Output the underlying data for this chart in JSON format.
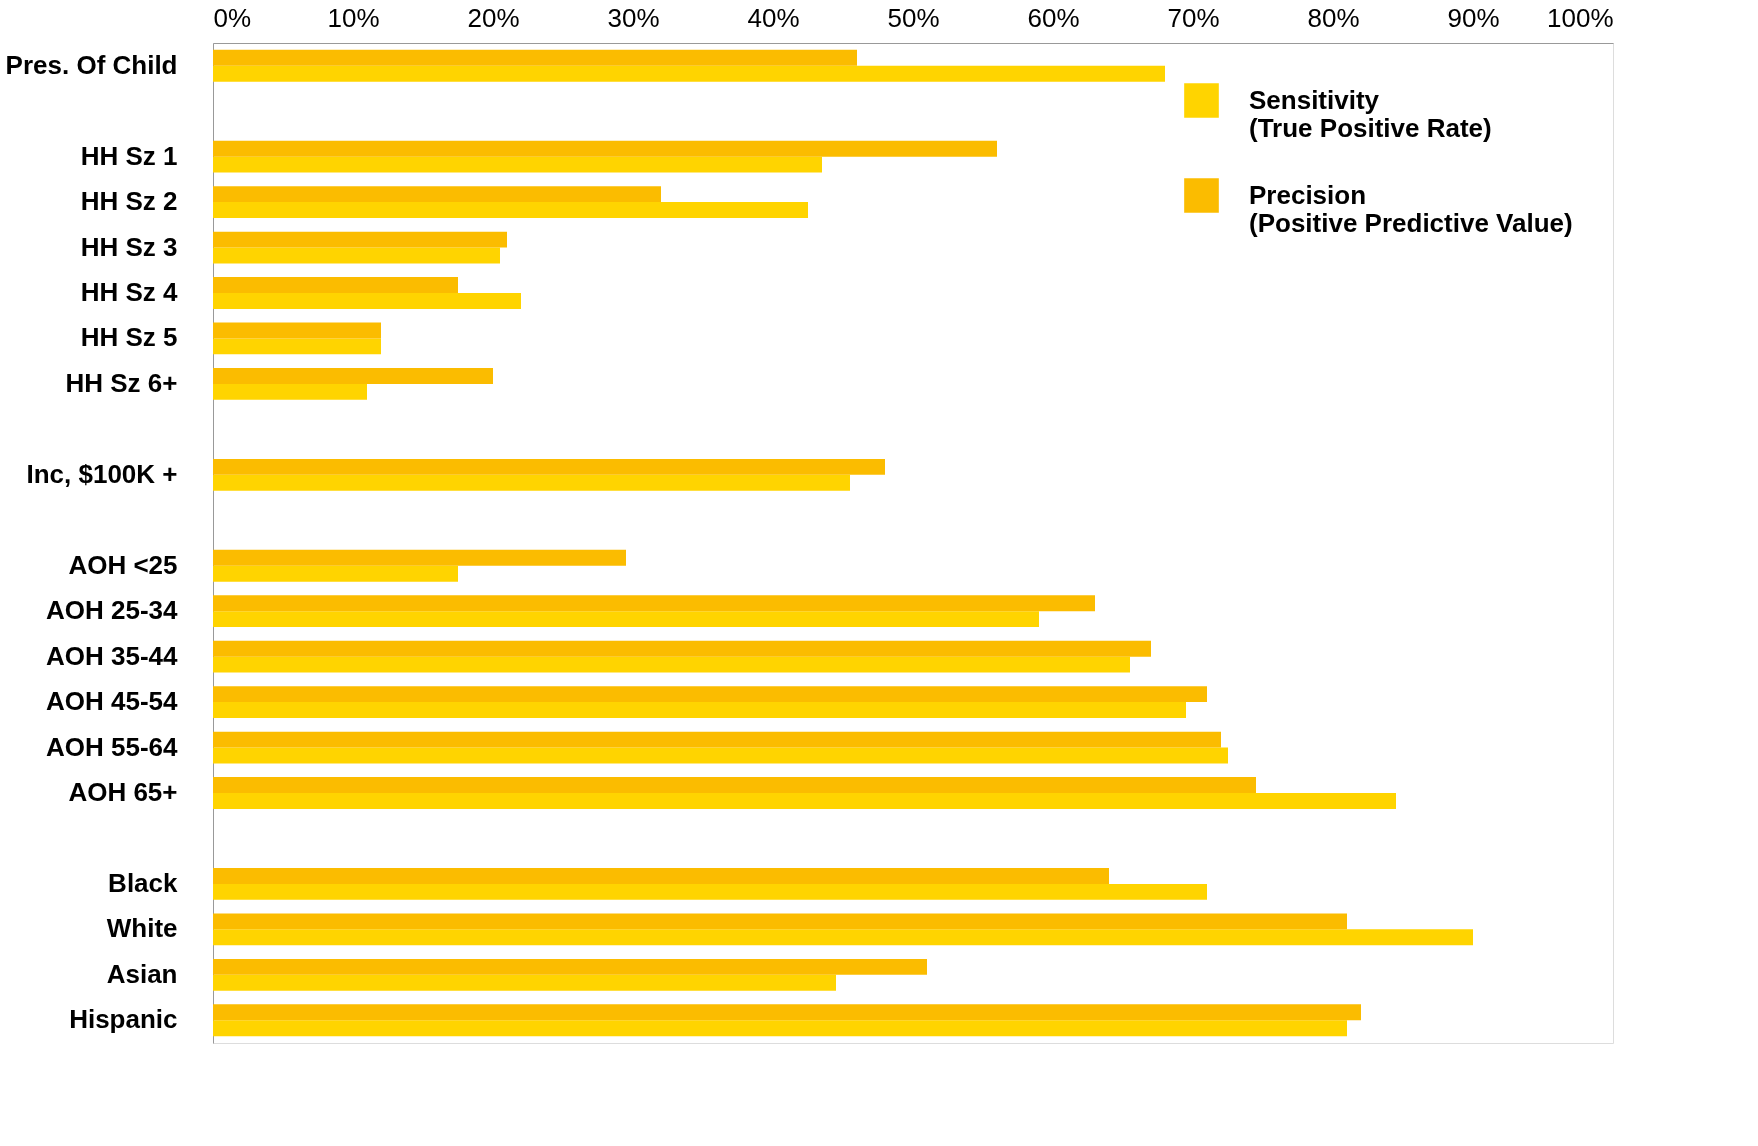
{
  "chart_data": {
    "type": "bar",
    "orientation": "horizontal",
    "categories": [
      "Pres. Of Child",
      null,
      "HH Sz 1",
      "HH Sz 2",
      "HH Sz 3",
      "HH Sz 4",
      "HH Sz 5",
      "HH Sz 6+",
      null,
      "Inc, $100K +",
      null,
      "AOH <25",
      "AOH 25-34",
      "AOH 35-44",
      "AOH 45-54",
      "AOH 55-64",
      "AOH 65+",
      null,
      "Black",
      "White",
      "Asian",
      "Hispanic"
    ],
    "series": [
      {
        "name": "Sensitivity\n(True Positive Rate)",
        "color": "#ffd400",
        "values": [
          68,
          null,
          43.5,
          42.5,
          20.5,
          22,
          12,
          11,
          null,
          45.5,
          null,
          17.5,
          59,
          65.5,
          69.5,
          72.5,
          84.5,
          null,
          71,
          90,
          44.5,
          81
        ]
      },
      {
        "name": "Precision\n(Positive Predictive Value)",
        "color": "#fbbc00",
        "values": [
          46,
          null,
          56,
          32,
          21,
          17.5,
          12,
          20,
          null,
          48,
          null,
          29.5,
          63,
          67,
          71,
          72,
          74.5,
          null,
          64,
          81,
          51,
          82
        ]
      }
    ],
    "xlim": [
      0,
      100
    ],
    "xticks": [
      {
        "value": 0,
        "label": "0%"
      },
      {
        "value": 10,
        "label": "10%"
      },
      {
        "value": 20,
        "label": "20%"
      },
      {
        "value": 30,
        "label": "30%"
      },
      {
        "value": 40,
        "label": "40%"
      },
      {
        "value": 50,
        "label": "50%"
      },
      {
        "value": 60,
        "label": "60%"
      },
      {
        "value": 70,
        "label": "70%"
      },
      {
        "value": 80,
        "label": "80%"
      },
      {
        "value": 90,
        "label": "90%"
      },
      {
        "value": 100,
        "label": "100%"
      }
    ],
    "grid": false,
    "legend": "top right"
  }
}
